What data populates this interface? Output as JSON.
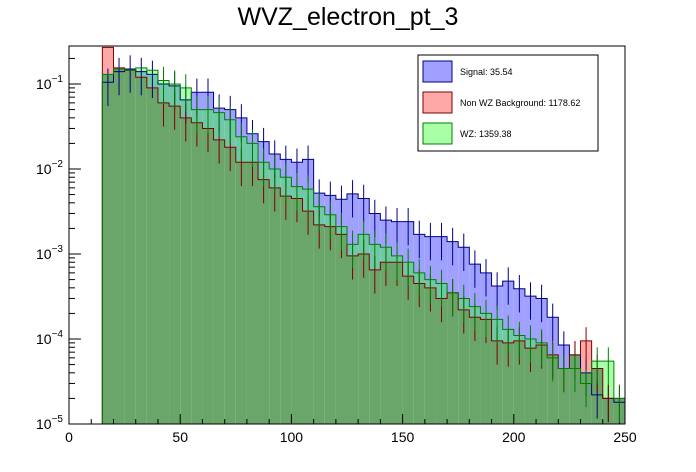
{
  "chart_data": {
    "type": "histogram",
    "title": "WVZ_electron_pt_3",
    "xlabel": "",
    "ylabel": "",
    "xlim": [
      0,
      250
    ],
    "ylim": [
      1e-05,
      0.28
    ],
    "yscale": "log",
    "bin_width": 5,
    "x_ticks": [
      {
        "value": 0,
        "label": "0"
      },
      {
        "value": 50,
        "label": "50"
      },
      {
        "value": 100,
        "label": "100"
      },
      {
        "value": 150,
        "label": "150"
      },
      {
        "value": 200,
        "label": "200"
      },
      {
        "value": 250,
        "label": "250"
      }
    ],
    "y_ticks": [
      {
        "value": 1e-05,
        "base": "10",
        "exp": "−5"
      },
      {
        "value": 0.0001,
        "base": "10",
        "exp": "−4"
      },
      {
        "value": 0.001,
        "base": "10",
        "exp": "−3"
      },
      {
        "value": 0.01,
        "base": "10",
        "exp": "−2"
      },
      {
        "value": 0.1,
        "base": "10",
        "exp": "−1"
      }
    ],
    "legend_placement": "top-right",
    "legend": [
      {
        "text": "Signal: 35.54",
        "color": "#a0a0ff",
        "border": "#000080"
      },
      {
        "text": "Non WZ Background: 1178.62",
        "color": "#ffa8a8",
        "border": "#800000"
      },
      {
        "text": "WZ: 1359.38",
        "color": "#a8ffa8",
        "border": "#008000"
      }
    ],
    "series": [
      {
        "name": "Signal",
        "fill": "#a0a0ff",
        "stroke": "#000080",
        "bins": [
          [
            15,
            20,
            0.105
          ],
          [
            20,
            25,
            0.14
          ],
          [
            25,
            30,
            0.15
          ],
          [
            30,
            35,
            0.14
          ],
          [
            35,
            40,
            0.13
          ],
          [
            40,
            45,
            0.1
          ],
          [
            45,
            50,
            0.095
          ],
          [
            50,
            55,
            0.065
          ],
          [
            55,
            60,
            0.08
          ],
          [
            60,
            65,
            0.08
          ],
          [
            65,
            70,
            0.052
          ],
          [
            70,
            75,
            0.05
          ],
          [
            75,
            80,
            0.04
          ],
          [
            80,
            85,
            0.026
          ],
          [
            85,
            90,
            0.021
          ],
          [
            90,
            95,
            0.015
          ],
          [
            95,
            100,
            0.013
          ],
          [
            100,
            105,
            0.012
          ],
          [
            105,
            110,
            0.013
          ],
          [
            110,
            115,
            0.0052
          ],
          [
            115,
            120,
            0.0049
          ],
          [
            120,
            125,
            0.0044
          ],
          [
            125,
            130,
            0.0051
          ],
          [
            130,
            135,
            0.0045
          ],
          [
            135,
            140,
            0.003
          ],
          [
            140,
            145,
            0.0025
          ],
          [
            145,
            150,
            0.0024
          ],
          [
            150,
            155,
            0.0024
          ],
          [
            155,
            160,
            0.0017
          ],
          [
            160,
            165,
            0.0016
          ],
          [
            165,
            170,
            0.0016
          ],
          [
            170,
            175,
            0.0014
          ],
          [
            175,
            180,
            0.0012
          ],
          [
            180,
            185,
            0.00076
          ],
          [
            185,
            190,
            0.0006
          ],
          [
            190,
            195,
            0.00042
          ],
          [
            195,
            200,
            0.00048
          ],
          [
            200,
            205,
            0.00039
          ],
          [
            205,
            210,
            0.00032
          ],
          [
            210,
            215,
            0.0003
          ],
          [
            215,
            220,
            0.00018
          ],
          [
            220,
            225,
            8.5e-05
          ],
          [
            225,
            230,
            6.5e-05
          ],
          [
            230,
            235,
            4e-05
          ],
          [
            235,
            240,
            2.2e-05
          ],
          [
            240,
            245,
            2e-05
          ],
          [
            245,
            250,
            1.8e-05
          ]
        ]
      },
      {
        "name": "Non WZ Background",
        "fill": "#ffa8a8",
        "stroke": "#800000",
        "bins": [
          [
            15,
            20,
            0.27
          ],
          [
            20,
            25,
            0.155
          ],
          [
            25,
            30,
            0.145
          ],
          [
            30,
            35,
            0.12
          ],
          [
            35,
            40,
            0.09
          ],
          [
            40,
            45,
            0.06
          ],
          [
            45,
            50,
            0.055
          ],
          [
            50,
            55,
            0.04
          ],
          [
            55,
            60,
            0.035
          ],
          [
            60,
            65,
            0.03
          ],
          [
            65,
            70,
            0.022
          ],
          [
            70,
            75,
            0.018
          ],
          [
            75,
            80,
            0.012
          ],
          [
            80,
            85,
            0.012
          ],
          [
            85,
            90,
            0.0075
          ],
          [
            90,
            95,
            0.006
          ],
          [
            95,
            100,
            0.0048
          ],
          [
            100,
            105,
            0.0045
          ],
          [
            105,
            110,
            0.0032
          ],
          [
            110,
            115,
            0.0022
          ],
          [
            115,
            120,
            0.0021
          ],
          [
            120,
            125,
            0.0017
          ],
          [
            125,
            130,
            0.00095
          ],
          [
            130,
            135,
            0.001
          ],
          [
            135,
            140,
            0.00065
          ],
          [
            140,
            145,
            0.0008
          ],
          [
            145,
            150,
            0.0008
          ],
          [
            150,
            155,
            0.00055
          ],
          [
            155,
            160,
            0.00045
          ],
          [
            160,
            165,
            0.0004
          ],
          [
            165,
            170,
            0.0003
          ],
          [
            170,
            175,
            0.00035
          ],
          [
            175,
            180,
            0.00022
          ],
          [
            180,
            185,
            0.00018
          ],
          [
            185,
            190,
            0.00017
          ],
          [
            190,
            195,
            9.5e-05
          ],
          [
            195,
            200,
            9e-05
          ],
          [
            200,
            205,
            9.5e-05
          ],
          [
            205,
            210,
            7.8e-05
          ],
          [
            210,
            215,
            8.5e-05
          ],
          [
            215,
            220,
            6.5e-05
          ],
          [
            220,
            225,
            4.5e-05
          ],
          [
            225,
            230,
            6.5e-05
          ],
          [
            230,
            235,
            9.5e-05
          ],
          [
            235,
            240,
            4.5e-05
          ],
          [
            240,
            245,
            2e-05
          ],
          [
            245,
            250,
            2e-05
          ]
        ]
      },
      {
        "name": "WZ",
        "fill": "#a8ffa8",
        "stroke": "#008000",
        "bins": [
          [
            15,
            20,
            0.13
          ],
          [
            20,
            25,
            0.15
          ],
          [
            25,
            30,
            0.145
          ],
          [
            30,
            35,
            0.155
          ],
          [
            35,
            40,
            0.145
          ],
          [
            40,
            45,
            0.11
          ],
          [
            45,
            50,
            0.1
          ],
          [
            50,
            55,
            0.09
          ],
          [
            55,
            60,
            0.05
          ],
          [
            60,
            65,
            0.05
          ],
          [
            65,
            70,
            0.046
          ],
          [
            70,
            75,
            0.038
          ],
          [
            75,
            80,
            0.024
          ],
          [
            80,
            85,
            0.02
          ],
          [
            85,
            90,
            0.012
          ],
          [
            90,
            95,
            0.01
          ],
          [
            95,
            100,
            0.008
          ],
          [
            100,
            105,
            0.0062
          ],
          [
            105,
            110,
            0.0058
          ],
          [
            110,
            115,
            0.0036
          ],
          [
            115,
            120,
            0.0029
          ],
          [
            120,
            125,
            0.0021
          ],
          [
            125,
            130,
            0.0013
          ],
          [
            130,
            135,
            0.0017
          ],
          [
            135,
            140,
            0.0013
          ],
          [
            140,
            145,
            0.0012
          ],
          [
            145,
            150,
            0.00095
          ],
          [
            150,
            155,
            0.0008
          ],
          [
            155,
            160,
            0.0006
          ],
          [
            160,
            165,
            0.0005
          ],
          [
            165,
            170,
            0.00045
          ],
          [
            170,
            175,
            0.00035
          ],
          [
            175,
            180,
            0.0003
          ],
          [
            180,
            185,
            0.00024
          ],
          [
            185,
            190,
            0.0002
          ],
          [
            190,
            195,
            0.00017
          ],
          [
            195,
            200,
            0.00013
          ],
          [
            200,
            205,
            0.00011
          ],
          [
            205,
            210,
            0.0001
          ],
          [
            210,
            215,
            9e-05
          ],
          [
            215,
            220,
            6e-05
          ],
          [
            220,
            225,
            4.5e-05
          ],
          [
            225,
            230,
            4.5e-05
          ],
          [
            230,
            235,
            3e-05
          ],
          [
            235,
            240,
            5.5e-05
          ],
          [
            240,
            245,
            5.5e-05
          ],
          [
            245,
            250,
            2e-05
          ]
        ]
      }
    ],
    "overlap": {
      "fill": "#6aa56a",
      "stroke": "#3b6b3b",
      "mixes": [
        {
          "pair": [
            "Signal",
            "WZ"
          ],
          "fill": "#6fc9a7",
          "stroke": "#006a6a"
        }
      ]
    }
  }
}
